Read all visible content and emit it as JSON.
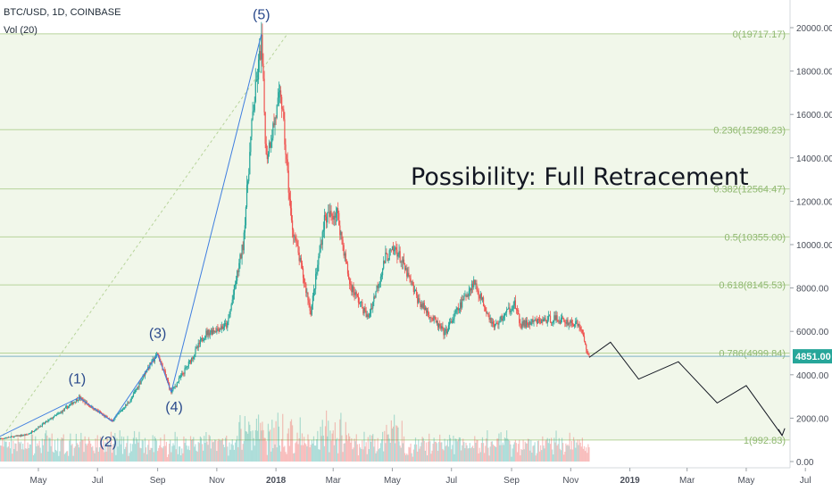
{
  "header": {
    "symbol_line": "BTC/USD, 1D, COINBASE",
    "volume_line": "Vol (20)"
  },
  "annotation": "Possibility: Full Retracement",
  "current_price": "4851.00",
  "colors": {
    "up": "#26a69a",
    "down": "#ef5350",
    "fib_fill": "#f1f7ea",
    "fib_line": "#b7d49a",
    "price_tag": "#26a69a",
    "trendline": "#3f7ee0",
    "projection": "#131722"
  },
  "chart_data": {
    "type": "candlestick",
    "yaxis": {
      "ticks": [
        0,
        2000,
        4000,
        6000,
        8000,
        10000,
        12000,
        14000,
        16000,
        18000,
        20000
      ],
      "tick_labels": [
        "0.00",
        "2000.00",
        "4000.00",
        "6000.00",
        "8000.00",
        "10000.00",
        "12000.00",
        "14000.00",
        "16000.00",
        "18000.00",
        "20000.00"
      ],
      "ylim": [
        0,
        20000
      ]
    },
    "xaxis": {
      "labels": [
        {
          "date": "2017-05-01",
          "text": "May"
        },
        {
          "date": "2017-07-01",
          "text": "Jul"
        },
        {
          "date": "2017-09-01",
          "text": "Sep"
        },
        {
          "date": "2017-11-01",
          "text": "Nov"
        },
        {
          "date": "2018-01-01",
          "text": "2018",
          "bold": true
        },
        {
          "date": "2018-03-01",
          "text": "Mar"
        },
        {
          "date": "2018-05-01",
          "text": "May"
        },
        {
          "date": "2018-07-01",
          "text": "Jul"
        },
        {
          "date": "2018-09-01",
          "text": "Sep"
        },
        {
          "date": "2018-11-01",
          "text": "Nov"
        },
        {
          "date": "2019-01-01",
          "text": "2019",
          "bold": true
        },
        {
          "date": "2019-03-01",
          "text": "Mar"
        },
        {
          "date": "2019-05-01",
          "text": "May"
        },
        {
          "date": "2019-07-01",
          "text": "Jul"
        }
      ]
    },
    "fib_levels": [
      {
        "ratio": "0",
        "price": 19717.17,
        "label": "0(19717.17)"
      },
      {
        "ratio": "0.236",
        "price": 15298.23,
        "label": "0.236(15298.23)"
      },
      {
        "ratio": "0.382",
        "price": 12564.47,
        "label": "0.382(12564.47)"
      },
      {
        "ratio": "0.5",
        "price": 10355.0,
        "label": "0.5(10355.00)"
      },
      {
        "ratio": "0.618",
        "price": 8145.53,
        "label": "0.618(8145.53)"
      },
      {
        "ratio": "0.786",
        "price": 4999.84,
        "label": "0.786(4999.84)"
      },
      {
        "ratio": "1",
        "price": 992.83,
        "label": "1(992.83)"
      }
    ],
    "price_path": [
      {
        "date": "2017-03-15",
        "price": 1000
      },
      {
        "date": "2017-04-20",
        "price": 1250
      },
      {
        "date": "2017-05-25",
        "price": 2300
      },
      {
        "date": "2017-06-12",
        "price": 2950
      },
      {
        "date": "2017-06-25",
        "price": 2500
      },
      {
        "date": "2017-07-16",
        "price": 1850
      },
      {
        "date": "2017-08-05",
        "price": 2900
      },
      {
        "date": "2017-08-20",
        "price": 4200
      },
      {
        "date": "2017-09-01",
        "price": 4950
      },
      {
        "date": "2017-09-15",
        "price": 3200
      },
      {
        "date": "2017-10-01",
        "price": 4350
      },
      {
        "date": "2017-10-20",
        "price": 5900
      },
      {
        "date": "2017-11-12",
        "price": 6300
      },
      {
        "date": "2017-11-28",
        "price": 10000
      },
      {
        "date": "2017-12-08",
        "price": 16000
      },
      {
        "date": "2017-12-17",
        "price": 19300
      },
      {
        "date": "2017-12-22",
        "price": 14000
      },
      {
        "date": "2018-01-06",
        "price": 17000
      },
      {
        "date": "2018-01-17",
        "price": 11000
      },
      {
        "date": "2018-02-06",
        "price": 6900
      },
      {
        "date": "2018-02-20",
        "price": 11200
      },
      {
        "date": "2018-03-05",
        "price": 11500
      },
      {
        "date": "2018-03-18",
        "price": 8200
      },
      {
        "date": "2018-04-06",
        "price": 6600
      },
      {
        "date": "2018-04-24",
        "price": 9400
      },
      {
        "date": "2018-05-05",
        "price": 9800
      },
      {
        "date": "2018-05-28",
        "price": 7400
      },
      {
        "date": "2018-06-24",
        "price": 5900
      },
      {
        "date": "2018-07-24",
        "price": 8300
      },
      {
        "date": "2018-08-14",
        "price": 6200
      },
      {
        "date": "2018-09-04",
        "price": 7300
      },
      {
        "date": "2018-09-10",
        "price": 6300
      },
      {
        "date": "2018-10-15",
        "price": 6600
      },
      {
        "date": "2018-11-10",
        "price": 6300
      },
      {
        "date": "2018-11-20",
        "price": 4800
      }
    ],
    "wave_labels": [
      {
        "text": "(1)",
        "date": "2017-06-10",
        "price": 3600
      },
      {
        "text": "(2)",
        "date": "2017-07-12",
        "price": 700
      },
      {
        "text": "(3)",
        "date": "2017-09-01",
        "price": 5700
      },
      {
        "text": "(4)",
        "date": "2017-09-18",
        "price": 2300
      },
      {
        "text": "(5)",
        "date": "2017-12-17",
        "price": 20400
      }
    ],
    "wave_lines": [
      {
        "from": {
          "date": "2017-03-15",
          "price": 1000
        },
        "to": {
          "date": "2017-06-12",
          "price": 2950
        }
      },
      {
        "from": {
          "date": "2017-06-12",
          "price": 2950
        },
        "to": {
          "date": "2017-07-16",
          "price": 1850
        }
      },
      {
        "from": {
          "date": "2017-07-16",
          "price": 1850
        },
        "to": {
          "date": "2017-09-01",
          "price": 4950
        }
      },
      {
        "from": {
          "date": "2017-09-01",
          "price": 4950
        },
        "to": {
          "date": "2017-09-15",
          "price": 3200
        }
      },
      {
        "from": {
          "date": "2017-09-15",
          "price": 3200
        },
        "to": {
          "date": "2017-12-17",
          "price": 19700
        }
      }
    ],
    "projection": [
      {
        "date": "2018-11-20",
        "price": 4800
      },
      {
        "date": "2018-12-12",
        "price": 5500
      },
      {
        "date": "2019-01-10",
        "price": 3800
      },
      {
        "date": "2019-02-20",
        "price": 4600
      },
      {
        "date": "2019-04-01",
        "price": 2700
      },
      {
        "date": "2019-05-01",
        "price": 3500
      },
      {
        "date": "2019-06-07",
        "price": 1200
      }
    ],
    "current_price_value": 4851
  }
}
